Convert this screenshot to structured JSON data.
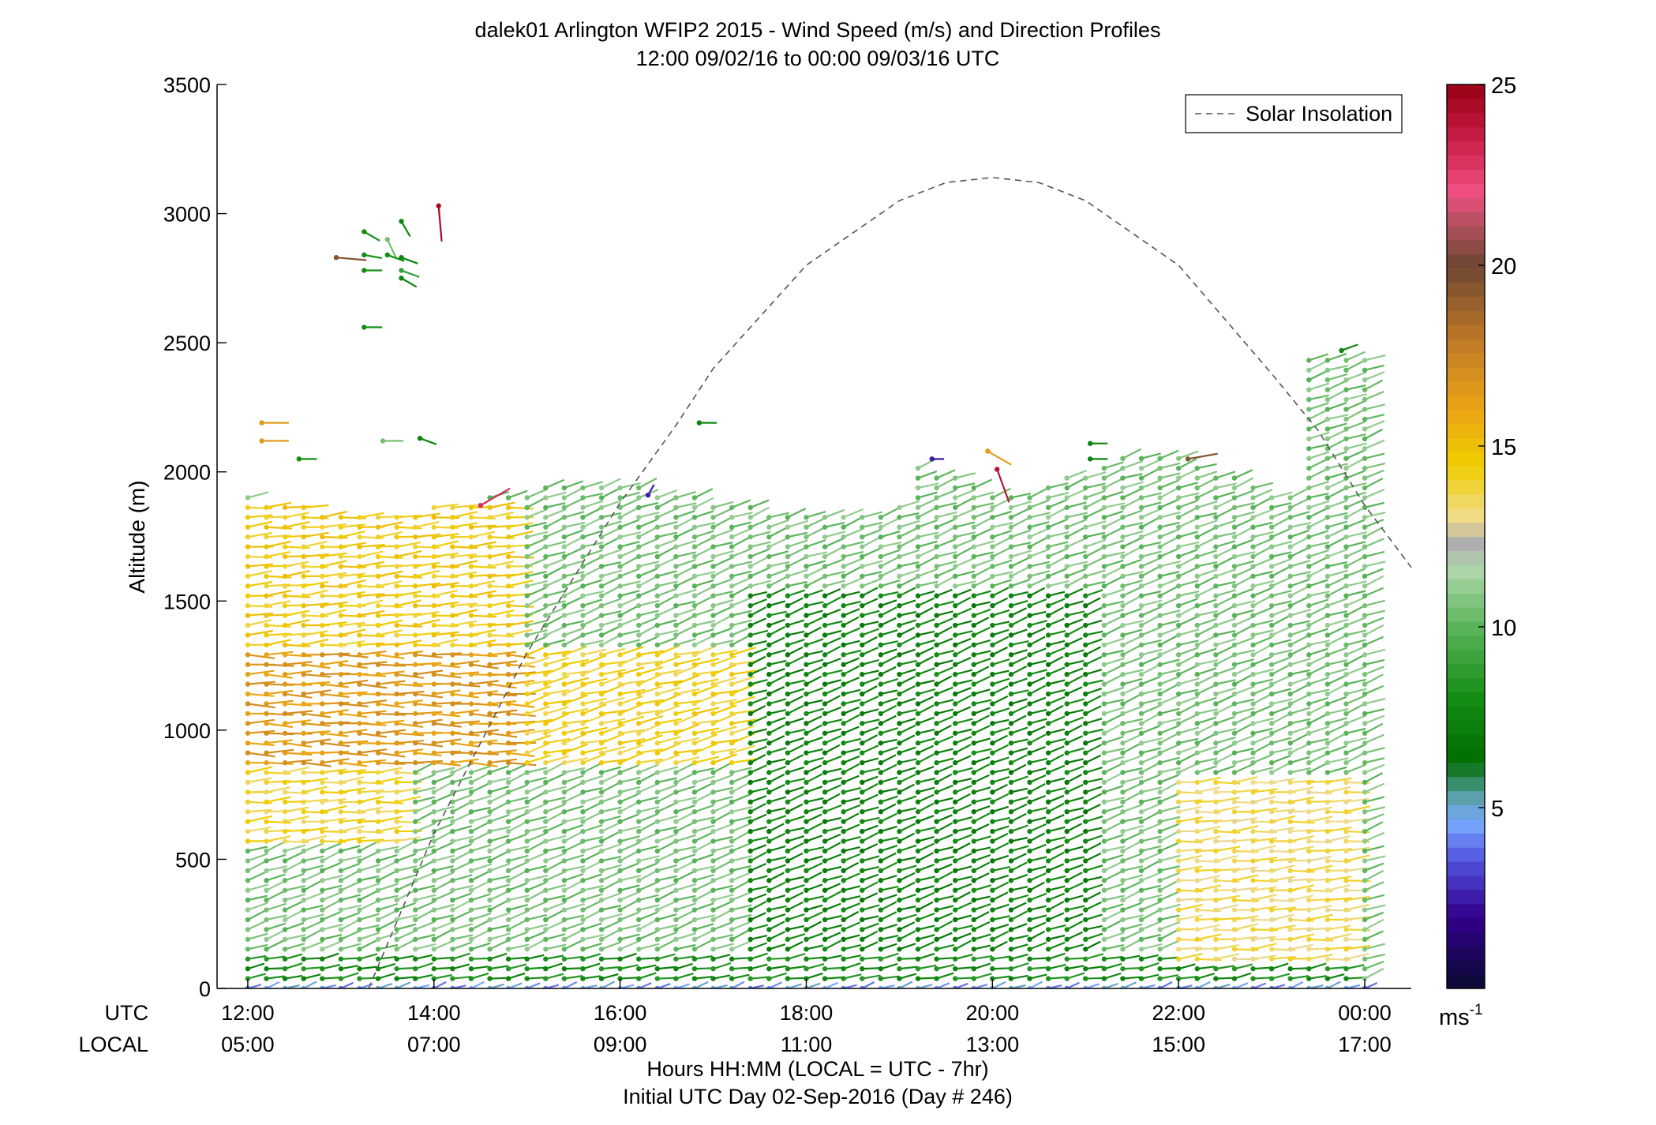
{
  "chart_data": {
    "type": "wind-barb-profile",
    "title": "dalek01 Arlington WFIP2 2015 - Wind Speed (m/s) and Direction Profiles",
    "subtitle": "12:00 09/02/16 to 00:00 09/03/16  UTC",
    "ylabel": "Altitude (m)",
    "ylim": [
      0,
      3500
    ],
    "yticks": [
      0,
      500,
      1000,
      1500,
      2000,
      2500,
      3000,
      3500
    ],
    "x_axis": {
      "row_labels": {
        "utc": "UTC",
        "local": "LOCAL"
      },
      "utc_ticks": [
        "12:00",
        "14:00",
        "16:00",
        "18:00",
        "20:00",
        "22:00",
        "00:00"
      ],
      "local_ticks": [
        "05:00",
        "07:00",
        "09:00",
        "11:00",
        "13:00",
        "15:00",
        "17:00"
      ],
      "xlim_hours": [
        11.67,
        24.5
      ],
      "label_line1": "Hours HH:MM  (LOCAL = UTC - 7hr)",
      "label_line2": "Initial UTC Day 02-Sep-2016 (Day # 246)"
    },
    "legend": {
      "entry": "Solar Insolation",
      "placement": "top-right"
    },
    "colorbar": {
      "unit_label": "ms",
      "unit_exponent": "-1",
      "range": [
        0,
        25
      ],
      "ticks": [
        5,
        10,
        15,
        20,
        25
      ]
    },
    "solar_insolation_curve": {
      "x_hours": [
        13.3,
        14,
        15,
        16,
        16.6,
        17,
        18,
        19,
        19.5,
        20,
        20.5,
        21,
        22,
        23,
        23.5,
        24,
        24.5
      ],
      "altitude": [
        0,
        600,
        1300,
        1880,
        2180,
        2400,
        2800,
        3050,
        3120,
        3140,
        3120,
        3050,
        2800,
        2380,
        2160,
        1870,
        1630
      ]
    },
    "wind_profile": {
      "time_step_hours": 0.2,
      "start_hour": 12,
      "end_hour": 24,
      "altitude_step_m": 38,
      "regions": [
        {
          "t0": 12,
          "t1": 15,
          "z0": 850,
          "z1": 1300,
          "speed": 16.5,
          "dir": 270
        },
        {
          "t0": 12,
          "t1": 15,
          "z0": 1300,
          "z1": 1900,
          "speed": 14.5,
          "dir": 265
        },
        {
          "t0": 15,
          "t1": 17.4,
          "z0": 850,
          "z1": 1300,
          "speed": 14.2,
          "dir": 255
        },
        {
          "t0": 12,
          "t1": 13.8,
          "z0": 550,
          "z1": 850,
          "speed": 14.0,
          "dir": 265
        },
        {
          "t0": 22,
          "t1": 24,
          "z0": 100,
          "z1": 800,
          "speed": 13.5,
          "dir": 265
        },
        {
          "t0": 17.4,
          "t1": 21.2,
          "z0": 150,
          "z1": 1550,
          "speed": 7.5,
          "dir": 250
        },
        {
          "t0": 12,
          "t1": 24,
          "z0": 0,
          "z1": 150,
          "speed": 8.0,
          "dir": 260
        },
        {
          "t0": 12,
          "t1": 24,
          "z0": 150,
          "z1": 2000,
          "speed": 10.5,
          "dir": 250
        }
      ],
      "surface_low_speed": 4.5
    },
    "isolated_barbs": [
      {
        "t": 12.15,
        "z": 2190,
        "speed": 16.5,
        "dir": 270
      },
      {
        "t": 12.15,
        "z": 2120,
        "speed": 16.5,
        "dir": 270
      },
      {
        "t": 12.55,
        "z": 2050,
        "speed": 8.0,
        "dir": 270
      },
      {
        "t": 12.95,
        "z": 2830,
        "speed": 19.5,
        "dir": 275
      },
      {
        "t": 13.25,
        "z": 2930,
        "speed": 8.0,
        "dir": 300
      },
      {
        "t": 13.25,
        "z": 2840,
        "speed": 8.0,
        "dir": 280
      },
      {
        "t": 13.25,
        "z": 2780,
        "speed": 8.0,
        "dir": 270
      },
      {
        "t": 13.25,
        "z": 2560,
        "speed": 8.0,
        "dir": 270
      },
      {
        "t": 13.5,
        "z": 2900,
        "speed": 10.5,
        "dir": 335
      },
      {
        "t": 13.5,
        "z": 2840,
        "speed": 8.0,
        "dir": 290
      },
      {
        "t": 13.65,
        "z": 2970,
        "speed": 7.5,
        "dir": 330
      },
      {
        "t": 13.65,
        "z": 2830,
        "speed": 7.5,
        "dir": 290
      },
      {
        "t": 13.65,
        "z": 2780,
        "speed": 9.0,
        "dir": 290
      },
      {
        "t": 13.65,
        "z": 2750,
        "speed": 7.5,
        "dir": 300
      },
      {
        "t": 13.45,
        "z": 2120,
        "speed": 10.5,
        "dir": 270
      },
      {
        "t": 13.85,
        "z": 2130,
        "speed": 7.5,
        "dir": 290
      },
      {
        "t": 14.05,
        "z": 3030,
        "speed": 24.5,
        "dir": 355
      },
      {
        "t": 14.5,
        "z": 1870,
        "speed": 23.0,
        "dir": 240
      },
      {
        "t": 16.3,
        "z": 1910,
        "speed": 2.5,
        "dir": 210
      },
      {
        "t": 16.85,
        "z": 2190,
        "speed": 7.5,
        "dir": 270
      },
      {
        "t": 19.35,
        "z": 2050,
        "speed": 2.5,
        "dir": 270
      },
      {
        "t": 20.05,
        "z": 2010,
        "speed": 24.0,
        "dir": 340
      },
      {
        "t": 19.95,
        "z": 2080,
        "speed": 16.5,
        "dir": 300
      },
      {
        "t": 21.05,
        "z": 2110,
        "speed": 7.5,
        "dir": 270
      },
      {
        "t": 21.05,
        "z": 2050,
        "speed": 7.5,
        "dir": 270
      },
      {
        "t": 22.1,
        "z": 2050,
        "speed": 19.5,
        "dir": 260
      },
      {
        "t": 23.75,
        "z": 2470,
        "speed": 7.5,
        "dir": 250
      }
    ]
  }
}
